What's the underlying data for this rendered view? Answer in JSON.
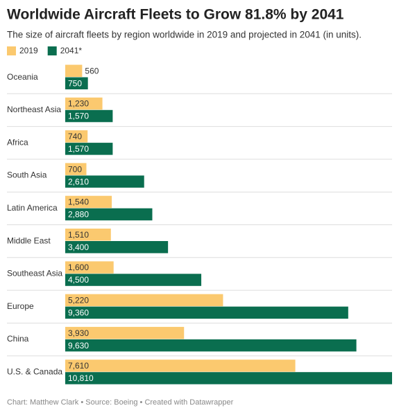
{
  "chart_data": {
    "type": "bar",
    "orientation": "horizontal",
    "title": "Worldwide Aircraft Fleets to Grow 81.8% by 2041",
    "subtitle": "The size of aircraft fleets by region worldwide in 2019 and projected in 2041 (in units).",
    "source": "Chart: Matthew Clark • Source: Boeing • Created with Datawrapper",
    "categories": [
      "Oceania",
      "Northeast Asia",
      "Africa",
      "South Asia",
      "Latin America",
      "Middle East",
      "Southeast Asia",
      "Europe",
      "China",
      "U.S. & Canada"
    ],
    "series": [
      {
        "name": "2019",
        "color": "#fbc96f",
        "values": [
          560,
          1230,
          740,
          700,
          1540,
          1510,
          1600,
          5220,
          3930,
          7610
        ],
        "value_labels": [
          "560",
          "1,230",
          "740",
          "700",
          "1,540",
          "1,510",
          "1,600",
          "5,220",
          "3,930",
          "7,610"
        ]
      },
      {
        "name": "2041*",
        "color": "#0a6e4f",
        "values": [
          750,
          1570,
          1570,
          2610,
          2880,
          3400,
          4500,
          9360,
          9630,
          10810
        ],
        "value_labels": [
          "750",
          "1,570",
          "1,570",
          "2,610",
          "2,880",
          "3,400",
          "4,500",
          "9,360",
          "9,630",
          "10,810"
        ]
      }
    ]
  }
}
